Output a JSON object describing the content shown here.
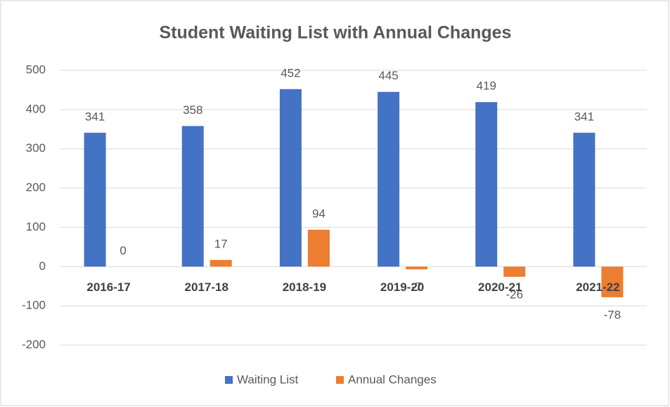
{
  "chart_data": {
    "type": "bar",
    "title": "Student Waiting List with Annual Changes",
    "categories": [
      "2016-17",
      "2017-18",
      "2018-19",
      "2019-20",
      "2020-21",
      "2021-22"
    ],
    "series": [
      {
        "name": "Waiting List",
        "color": "#4472c4",
        "values": [
          341,
          358,
          452,
          445,
          419,
          341
        ]
      },
      {
        "name": "Annual Changes",
        "color": "#ed7d31",
        "values": [
          0,
          17,
          94,
          -7,
          -26,
          -78
        ]
      }
    ],
    "ylim": [
      -200,
      500
    ],
    "yticks": [
      -200,
      -100,
      0,
      100,
      200,
      300,
      400,
      500
    ],
    "grid": true,
    "legend": "bottom"
  }
}
